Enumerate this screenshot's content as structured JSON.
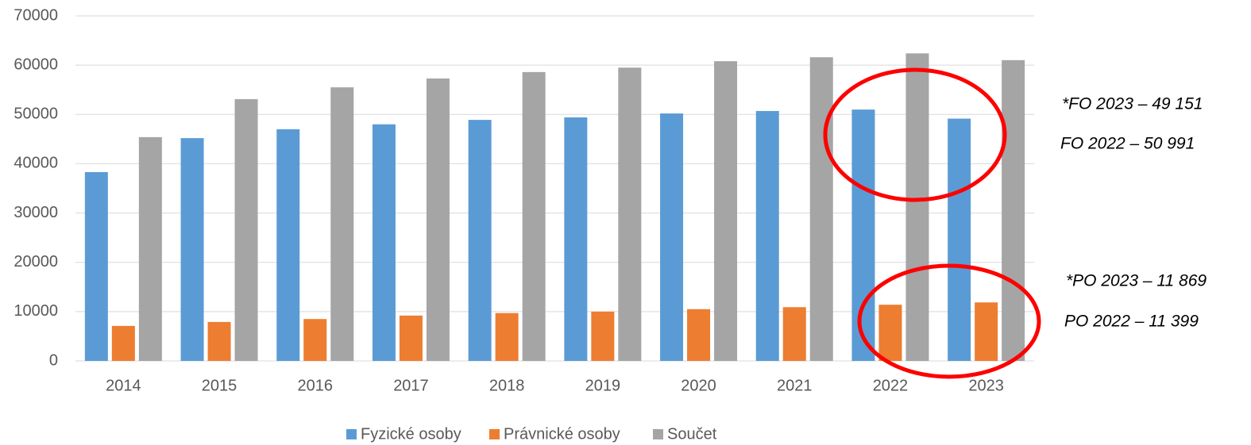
{
  "chart_data": {
    "type": "bar",
    "categories": [
      "2014",
      "2015",
      "2016",
      "2017",
      "2018",
      "2019",
      "2020",
      "2021",
      "2022",
      "2023"
    ],
    "series": [
      {
        "name": "Fyzické osoby",
        "color": "#5b9bd5",
        "values": [
          38300,
          45200,
          47000,
          48000,
          48900,
          49400,
          50200,
          50700,
          50991,
          49151
        ]
      },
      {
        "name": "Právnické osoby",
        "color": "#ed7d31",
        "values": [
          7100,
          7900,
          8500,
          9200,
          9700,
          10000,
          10500,
          10900,
          11399,
          11869
        ]
      },
      {
        "name": "Součet",
        "color": "#a5a5a5",
        "values": [
          45400,
          53100,
          55500,
          57300,
          58600,
          59500,
          60800,
          61600,
          62390,
          61020
        ]
      }
    ],
    "ylim": [
      0,
      70000
    ],
    "yticks": [
      0,
      10000,
      20000,
      30000,
      40000,
      50000,
      60000,
      70000
    ],
    "grid": true,
    "legend": "bottom",
    "annotations": [
      "*FO 2023 – 49 151",
      "FO 2022 – 50 991",
      "*PO 2023 – 11 869",
      "PO 2022 – 11 399"
    ]
  }
}
